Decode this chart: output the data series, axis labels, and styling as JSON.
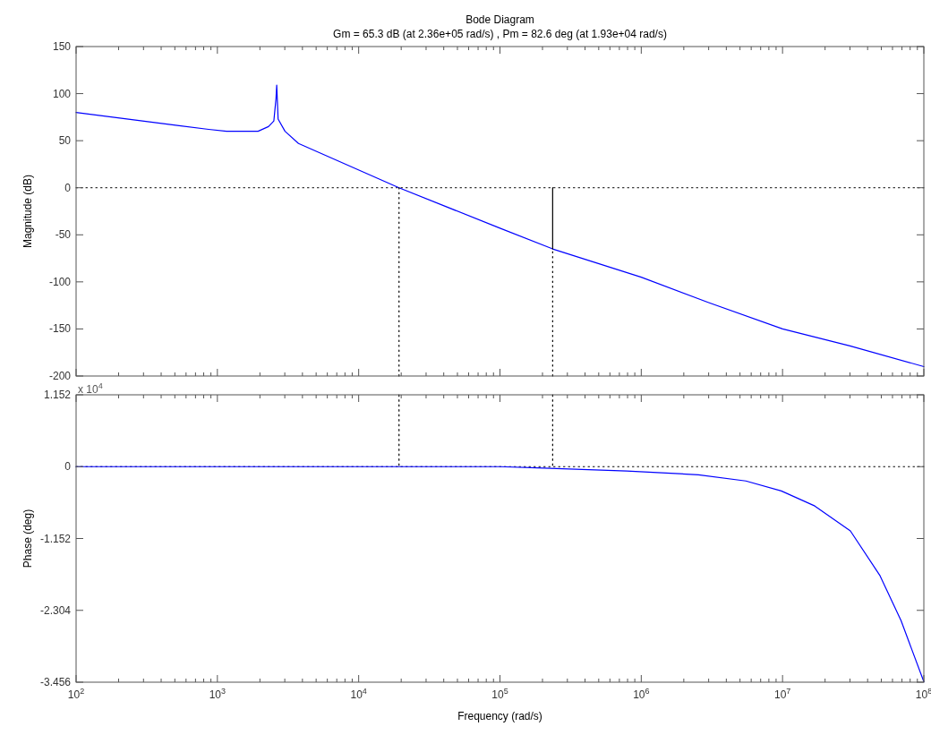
{
  "chart_data": [
    {
      "type": "line",
      "title": "Bode Diagram",
      "subtitle": "Gm = 65.3 dB (at 2.36e+05 rad/s) ,  Pm = 82.6 deg (at 1.93e+04 rad/s)",
      "ylabel": "Magnitude (dB)",
      "log": "x",
      "xlim": [
        100,
        100000000
      ],
      "ylim": [
        -200,
        150
      ],
      "yticks": [
        -200,
        -150,
        -100,
        -50,
        0,
        50,
        100,
        150
      ],
      "xticks": [
        {
          "value": 100,
          "label": null
        },
        {
          "value": 1000,
          "label": null
        },
        {
          "value": 10000,
          "label": null
        },
        {
          "value": 100000,
          "label": null
        },
        {
          "value": 1000000,
          "label": null
        },
        {
          "value": 10000000,
          "label": null
        },
        {
          "value": 100000000,
          "label": null
        }
      ],
      "tick_labels": "y",
      "grid": false,
      "series": [
        {
          "color": "#0000ff",
          "x": [
            100,
            536,
            867,
            1160,
            1940,
            2300,
            2510,
            2600,
            2630,
            2690,
            3010,
            3750,
            19300,
            100000,
            236000,
            1000000,
            3000000,
            10000000,
            30000000,
            100000000
          ],
          "values": [
            80,
            66,
            62,
            60,
            60,
            65,
            71,
            95,
            109,
            73,
            60,
            47,
            0,
            -43,
            -65,
            -95,
            -122,
            -150,
            -168,
            -190
          ]
        },
        {
          "color": "#000000",
          "line_style": "dotted",
          "x": [
            19300,
            19300
          ],
          "values": [
            -200,
            0
          ]
        },
        {
          "color": "#000000",
          "line_style": "dotted",
          "x": [
            236000,
            236000
          ],
          "values": [
            -200,
            -65
          ]
        },
        {
          "color": "#000000",
          "line_style": "solid",
          "x": [
            236000,
            236000
          ],
          "values": [
            0,
            -65
          ]
        }
      ],
      "ref_lines": [
        {
          "axis": "y",
          "value": 0,
          "color": "#000000",
          "line_style": "dotted"
        }
      ]
    },
    {
      "type": "line",
      "xlabel": "Frequency (rad/s)",
      "ylabel": "Phase (deg)",
      "annotations": [
        "x 10$^{4}$"
      ],
      "log": "x",
      "xlim": [
        100,
        100000000
      ],
      "ylim": [
        -3.456,
        1.152
      ],
      "yticks": [
        -3.456,
        -2.304,
        -1.152,
        0,
        1.152
      ],
      "xticks": [
        {
          "value": 100,
          "label": "10$^{2}$"
        },
        {
          "value": 1000,
          "label": "10$^{3}$"
        },
        {
          "value": 10000,
          "label": "10$^{4}$"
        },
        {
          "value": 100000,
          "label": "10$^{5}$"
        },
        {
          "value": 1000000,
          "label": "10$^{6}$"
        },
        {
          "value": 10000000,
          "label": "10$^{7}$"
        },
        {
          "value": 100000000,
          "label": "10$^{8}$"
        }
      ],
      "grid": false,
      "series": [
        {
          "color": "#0000ff",
          "x": [
            100,
            10000,
            100000,
            184000,
            790000,
            2540000,
            5500000,
            9800000,
            16900000,
            30200000,
            49000000,
            69000000,
            100000000
          ],
          "values": [
            0,
            0,
            0,
            -0.02,
            -0.07,
            -0.13,
            -0.23,
            -0.39,
            -0.63,
            -1.03,
            -1.75,
            -2.47,
            -3.45
          ]
        },
        {
          "color": "#000000",
          "line_style": "dotted",
          "x": [
            19300,
            19300
          ],
          "values": [
            1.15,
            0
          ]
        },
        {
          "color": "#000000",
          "line_style": "dotted",
          "x": [
            236000,
            236000
          ],
          "values": [
            1.15,
            0
          ]
        }
      ],
      "ref_lines": [
        {
          "axis": "y",
          "value": 0,
          "color": "#000000",
          "line_style": "dotted"
        }
      ]
    }
  ]
}
